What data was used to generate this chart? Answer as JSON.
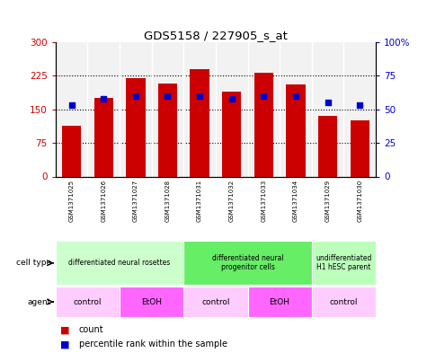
{
  "title": "GDS5158 / 227905_s_at",
  "samples": [
    "GSM1371025",
    "GSM1371026",
    "GSM1371027",
    "GSM1371028",
    "GSM1371031",
    "GSM1371032",
    "GSM1371033",
    "GSM1371034",
    "GSM1371029",
    "GSM1371030"
  ],
  "counts": [
    113,
    175,
    220,
    207,
    240,
    190,
    232,
    205,
    135,
    125
  ],
  "percentiles": [
    53,
    58,
    60,
    60,
    60,
    58,
    60,
    60,
    55,
    53
  ],
  "left_ylim": [
    0,
    300
  ],
  "right_ylim": [
    0,
    100
  ],
  "left_yticks": [
    0,
    75,
    150,
    225,
    300
  ],
  "right_yticks": [
    0,
    25,
    50,
    75,
    100
  ],
  "left_yticklabels": [
    "0",
    "75",
    "150",
    "225",
    "300"
  ],
  "right_yticklabels": [
    "0",
    "25",
    "50",
    "75",
    "100%"
  ],
  "bar_color": "#cc0000",
  "dot_color": "#0000cc",
  "grid_dotted_color": "#666666",
  "plot_bg": "#f2f2f2",
  "sample_bg": "#cccccc",
  "cell_type_groups": [
    {
      "label": "differentiated neural rosettes",
      "start": 0,
      "end": 3,
      "color": "#ccffcc"
    },
    {
      "label": "differentiated neural\nprogenitor cells",
      "start": 4,
      "end": 7,
      "color": "#66ee66"
    },
    {
      "label": "undifferentiated\nH1 hESC parent",
      "start": 8,
      "end": 9,
      "color": "#bbffbb"
    }
  ],
  "agent_groups": [
    {
      "label": "control",
      "start": 0,
      "end": 1,
      "color": "#ffccff"
    },
    {
      "label": "EtOH",
      "start": 2,
      "end": 3,
      "color": "#ff66ff"
    },
    {
      "label": "control",
      "start": 4,
      "end": 5,
      "color": "#ffccff"
    },
    {
      "label": "EtOH",
      "start": 6,
      "end": 7,
      "color": "#ff66ff"
    },
    {
      "label": "control",
      "start": 8,
      "end": 9,
      "color": "#ffccff"
    }
  ],
  "legend_count_color": "#cc0000",
  "legend_dot_color": "#0000cc",
  "background_color": "#ffffff"
}
